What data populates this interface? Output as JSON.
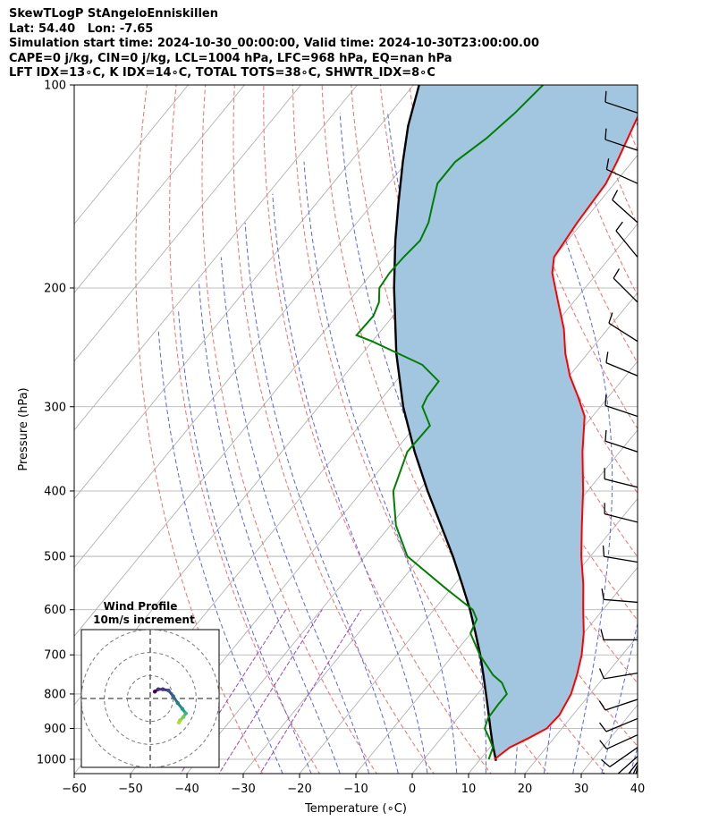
{
  "header": {
    "line1": "SkewTLogP StAngeloEnniskillen",
    "line2": "Lat: 54.40   Lon: -7.65",
    "line3": "Simulation start time: 2024-10-30_00:00:00, Valid time: 2024-10-30T23:00:00.00",
    "line4": "CAPE=0 j/kg, CIN=0 j/kg, LCL=1004 hPa, LFC=968 hPa, EQ=nan hPa",
    "line5": "LFT IDX=13∘C, K IDX=14∘C, TOTAL TOTS=38∘C, SHWTR_IDX=8∘C"
  },
  "chart_data": [
    {
      "type": "line",
      "subtype": "skew-t log-p",
      "xlabel": "Temperature (∘C)",
      "ylabel": "Pressure (hPa)",
      "xlim": [
        -60,
        40
      ],
      "ylim": [
        1050,
        100
      ],
      "y_scale": "log",
      "x_ticks": [
        "−60",
        "−50",
        "−40",
        "−30",
        "−20",
        "−10",
        "0",
        "10",
        "20",
        "30",
        "40"
      ],
      "y_ticks": [
        "100",
        "200",
        "300",
        "400",
        "500",
        "600",
        "700",
        "800",
        "900",
        "1000"
      ],
      "grid": true,
      "colors": {
        "temperature": "#ff0000",
        "dewpoint": "#008000",
        "parcel": "#000000",
        "shading": "#a2c6e0",
        "isotherm": "#aaaaaa",
        "dry_adiabat": "#f07070",
        "moist_adiabat": "#5a64f0",
        "mixing_ratio": "#9a4ab8"
      },
      "series": [
        {
          "role": "temperature",
          "points": [
            {
              "p": 1000,
              "t": 12.5
            },
            {
              "p": 960,
              "t": 13.5
            },
            {
              "p": 930,
              "t": 15.5
            },
            {
              "p": 900,
              "t": 17.3
            },
            {
              "p": 860,
              "t": 17.6
            },
            {
              "p": 800,
              "t": 16.6
            },
            {
              "p": 750,
              "t": 14.9
            },
            {
              "p": 700,
              "t": 12.8
            },
            {
              "p": 650,
              "t": 10.0
            },
            {
              "p": 600,
              "t": 6.5
            },
            {
              "p": 550,
              "t": 2.8
            },
            {
              "p": 500,
              "t": -1.6
            },
            {
              "p": 450,
              "t": -6.0
            },
            {
              "p": 400,
              "t": -10.8
            },
            {
              "p": 350,
              "t": -16.6
            },
            {
              "p": 310,
              "t": -21.4
            },
            {
              "p": 290,
              "t": -25.4
            },
            {
              "p": 270,
              "t": -29.9
            },
            {
              "p": 250,
              "t": -34.0
            },
            {
              "p": 230,
              "t": -37.8
            },
            {
              "p": 210,
              "t": -42.7
            },
            {
              "p": 190,
              "t": -48.0
            },
            {
              "p": 180,
              "t": -50.0
            },
            {
              "p": 160,
              "t": -50.9
            },
            {
              "p": 140,
              "t": -51.5
            },
            {
              "p": 130,
              "t": -52.7
            },
            {
              "p": 115,
              "t": -55.0
            },
            {
              "p": 100,
              "t": -57.5
            }
          ]
        },
        {
          "role": "dewpoint",
          "points": [
            {
              "p": 1000,
              "t": 11.5
            },
            {
              "p": 960,
              "t": 10.5
            },
            {
              "p": 930,
              "t": 8.5
            },
            {
              "p": 900,
              "t": 6.3
            },
            {
              "p": 870,
              "t": 5.4
            },
            {
              "p": 830,
              "t": 5.2
            },
            {
              "p": 800,
              "t": 5.2
            },
            {
              "p": 770,
              "t": 2.7
            },
            {
              "p": 750,
              "t": 0.0
            },
            {
              "p": 700,
              "t": -5.3
            },
            {
              "p": 650,
              "t": -10.1
            },
            {
              "p": 620,
              "t": -11.0
            },
            {
              "p": 600,
              "t": -13.1
            },
            {
              "p": 560,
              "t": -20.6
            },
            {
              "p": 500,
              "t": -32.5
            },
            {
              "p": 450,
              "t": -39.0
            },
            {
              "p": 400,
              "t": -44.5
            },
            {
              "p": 350,
              "t": -47.7
            },
            {
              "p": 320,
              "t": -47.5
            },
            {
              "p": 300,
              "t": -51.6
            },
            {
              "p": 290,
              "t": -52.2
            },
            {
              "p": 275,
              "t": -52.4
            },
            {
              "p": 260,
              "t": -57.7
            },
            {
              "p": 240,
              "t": -70.0
            },
            {
              "p": 235,
              "t": -73.7
            },
            {
              "p": 220,
              "t": -73.5
            },
            {
              "p": 210,
              "t": -74.5
            },
            {
              "p": 200,
              "t": -76.5
            },
            {
              "p": 190,
              "t": -76.9
            },
            {
              "p": 180,
              "t": -76.7
            },
            {
              "p": 170,
              "t": -76.2
            },
            {
              "p": 160,
              "t": -77.3
            },
            {
              "p": 150,
              "t": -79.3
            },
            {
              "p": 140,
              "t": -81.4
            },
            {
              "p": 130,
              "t": -81.4
            },
            {
              "p": 120,
              "t": -79.3
            },
            {
              "p": 110,
              "t": -77.9
            },
            {
              "p": 100,
              "t": -77.0
            }
          ]
        },
        {
          "role": "parcel",
          "points": [
            {
              "p": 1005,
              "t": 13.0
            },
            {
              "p": 950,
              "t": 10.0
            },
            {
              "p": 900,
              "t": 7.3
            },
            {
              "p": 850,
              "t": 4.5
            },
            {
              "p": 800,
              "t": 1.5
            },
            {
              "p": 750,
              "t": -1.7
            },
            {
              "p": 700,
              "t": -5.2
            },
            {
              "p": 650,
              "t": -9.2
            },
            {
              "p": 600,
              "t": -13.6
            },
            {
              "p": 550,
              "t": -18.7
            },
            {
              "p": 500,
              "t": -24.4
            },
            {
              "p": 450,
              "t": -31.0
            },
            {
              "p": 400,
              "t": -38.4
            },
            {
              "p": 350,
              "t": -46.4
            },
            {
              "p": 300,
              "t": -55.0
            },
            {
              "p": 250,
              "t": -64.0
            },
            {
              "p": 200,
              "t": -73.9
            },
            {
              "p": 170,
              "t": -80.6
            },
            {
              "p": 150,
              "t": -85.4
            },
            {
              "p": 130,
              "t": -90.7
            },
            {
              "p": 115,
              "t": -95.0
            },
            {
              "p": 100,
              "t": -99.0
            }
          ]
        }
      ],
      "wind_barbs": [
        {
          "p": 110,
          "u": 12,
          "v": -4
        },
        {
          "p": 125,
          "u": 12,
          "v": -4
        },
        {
          "p": 140,
          "u": 11,
          "v": -5
        },
        {
          "p": 160,
          "u": 10,
          "v": -9
        },
        {
          "p": 180,
          "u": 9,
          "v": -11
        },
        {
          "p": 210,
          "u": 10,
          "v": -10
        },
        {
          "p": 240,
          "u": 11,
          "v": -7
        },
        {
          "p": 270,
          "u": 12,
          "v": -5
        },
        {
          "p": 310,
          "u": 12,
          "v": -4
        },
        {
          "p": 350,
          "u": 12,
          "v": -4
        },
        {
          "p": 395,
          "u": 12,
          "v": -3
        },
        {
          "p": 445,
          "u": 12,
          "v": -3
        },
        {
          "p": 510,
          "u": 12,
          "v": -2
        },
        {
          "p": 585,
          "u": 12,
          "v": -1
        },
        {
          "p": 665,
          "u": 12,
          "v": 0
        },
        {
          "p": 745,
          "u": 12,
          "v": 2
        },
        {
          "p": 815,
          "u": 12,
          "v": 4
        },
        {
          "p": 870,
          "u": 12,
          "v": 5
        },
        {
          "p": 920,
          "u": 11,
          "v": 5
        },
        {
          "p": 960,
          "u": 10,
          "v": 7
        },
        {
          "p": 990,
          "u": 9,
          "v": 8
        },
        {
          "p": 1010,
          "u": 7,
          "v": 9
        },
        {
          "p": 1020,
          "u": 5,
          "v": 10
        },
        {
          "p": 1030,
          "u": 3,
          "v": 11
        }
      ]
    },
    {
      "type": "scatter",
      "subtype": "hodograph",
      "title": "Wind Profile",
      "subtitle": "10m/s increment",
      "xlim": [
        -30,
        30
      ],
      "ylim": [
        -30,
        30
      ],
      "rings": [
        10,
        20,
        30
      ],
      "points": [
        {
          "u": 2.0,
          "v": 3.0,
          "c": "#440154"
        },
        {
          "u": 3.5,
          "v": 4.0,
          "c": "#46327e"
        },
        {
          "u": 5.5,
          "v": 4.0,
          "c": "#46327e"
        },
        {
          "u": 8.0,
          "v": 3.5,
          "c": "#3b528b"
        },
        {
          "u": 10.0,
          "v": 1.0,
          "c": "#31688e"
        },
        {
          "u": 12.0,
          "v": -2.0,
          "c": "#277f8e"
        },
        {
          "u": 14.0,
          "v": -4.5,
          "c": "#1f9a8a"
        },
        {
          "u": 15.5,
          "v": -6.5,
          "c": "#35b779"
        },
        {
          "u": 14.5,
          "v": -8.0,
          "c": "#6ece58"
        },
        {
          "u": 13.0,
          "v": -9.5,
          "c": "#8fd744"
        },
        {
          "u": 12.5,
          "v": -10.5,
          "c": "#b5de2b"
        }
      ]
    }
  ]
}
